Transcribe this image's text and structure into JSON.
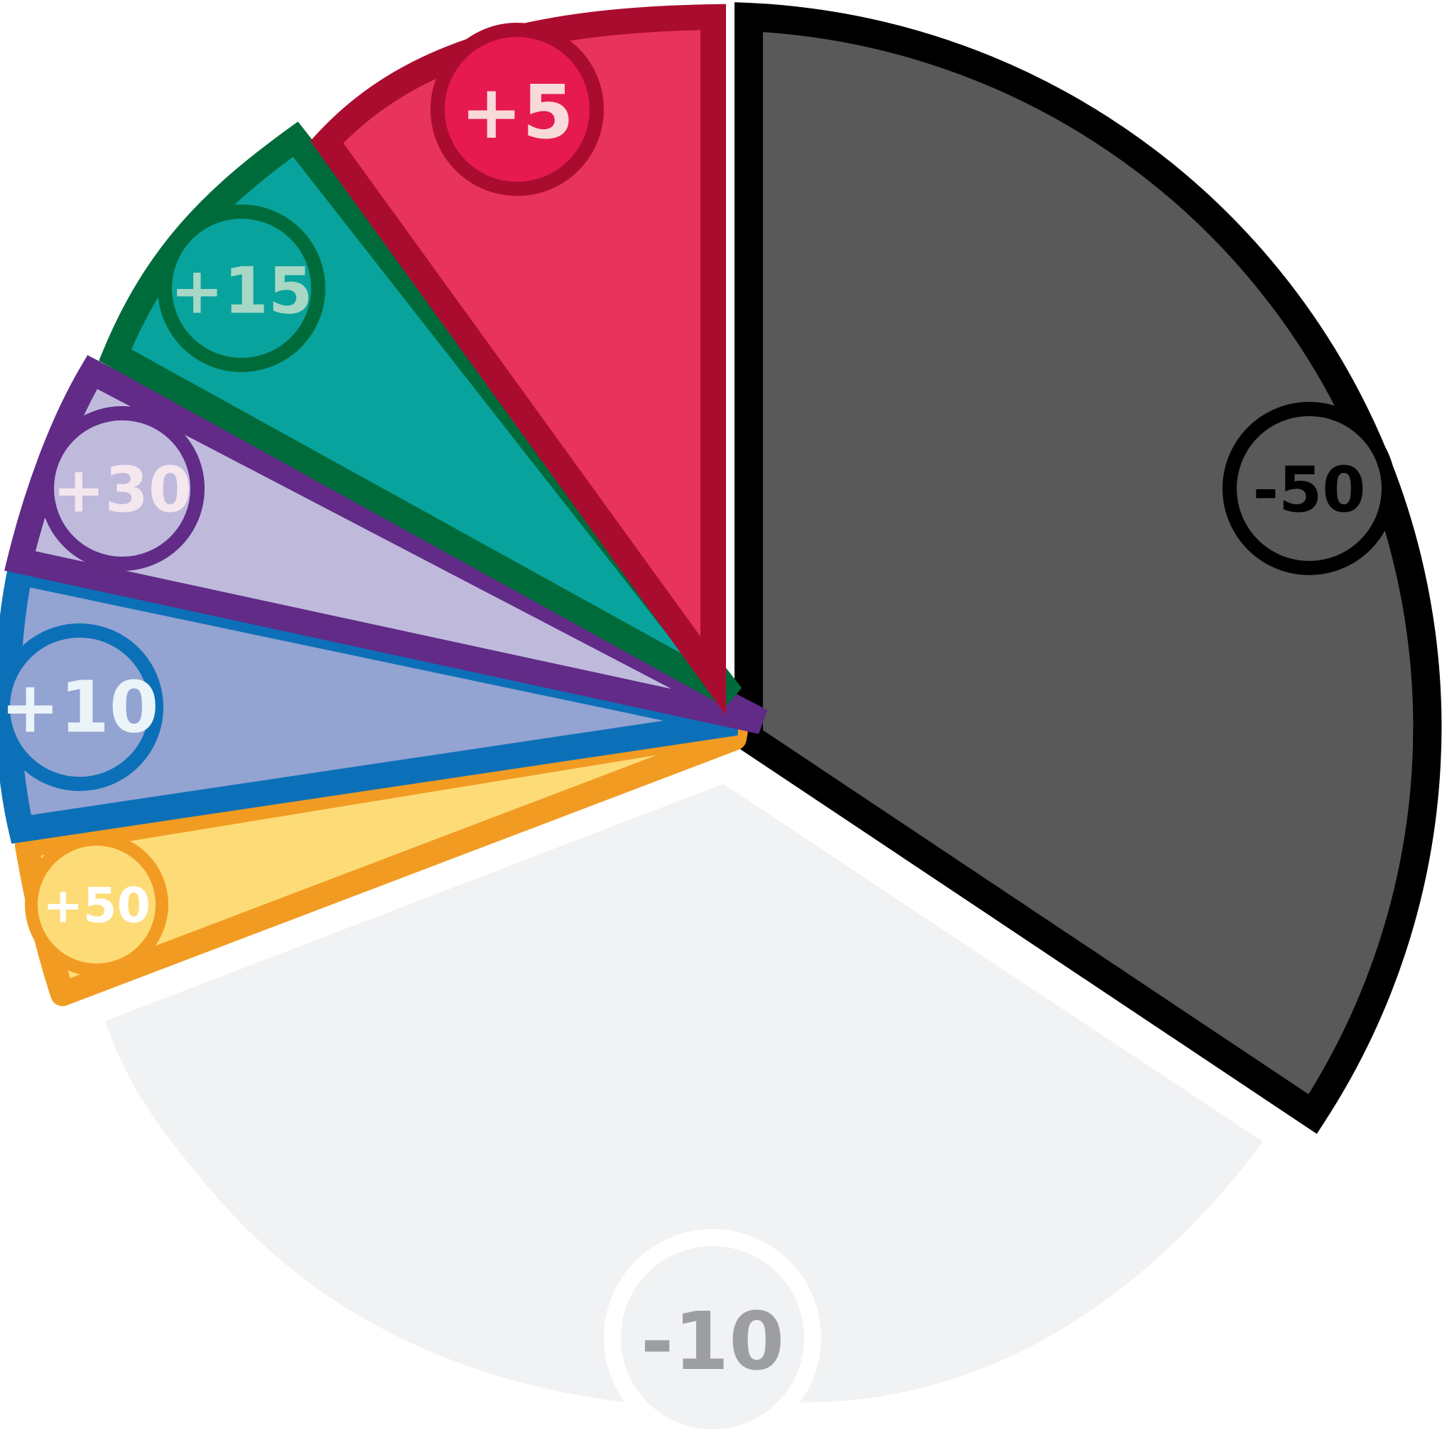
{
  "segments": [
    {
      "label": "-50",
      "fill": "#595959",
      "stroke": "#000000",
      "badge_fill": "#595959",
      "badge_stroke": "#000000",
      "text_color": "#000000"
    },
    {
      "label": "-10",
      "fill": "#F1F2F4",
      "stroke": "#F1F2F4",
      "badge_fill": "#F1F2F4",
      "badge_stroke": "#FFFFFF",
      "text_color": "#9D9EA0"
    },
    {
      "label": "+50",
      "fill": "#FDDC78",
      "stroke": "#F29B22",
      "badge_fill": "#FDDC78",
      "badge_stroke": "#F29B22",
      "text_color": "#FFFFFF"
    },
    {
      "label": "+10",
      "fill": "#93A3D2",
      "stroke": "#0C70B8",
      "badge_fill": "#93A3D2",
      "badge_stroke": "#0C70B8",
      "text_color": "#EAF4F9"
    },
    {
      "label": "+30",
      "fill": "#BFBADC",
      "stroke": "#612B87",
      "badge_fill": "#BFBADC",
      "badge_stroke": "#612B87",
      "text_color": "#F5E7EE"
    },
    {
      "label": "+15",
      "fill": "#08A39C",
      "stroke": "#006B3A",
      "badge_fill": "#08A39C",
      "badge_stroke": "#006B3A",
      "text_color": "#A7D7C5"
    },
    {
      "label": "+5",
      "fill": "#E8335C",
      "stroke": "#AA0C2F",
      "badge_fill": "#E61A4F",
      "badge_stroke": "#AA0C2F",
      "text_color": "#F8DADB"
    }
  ]
}
